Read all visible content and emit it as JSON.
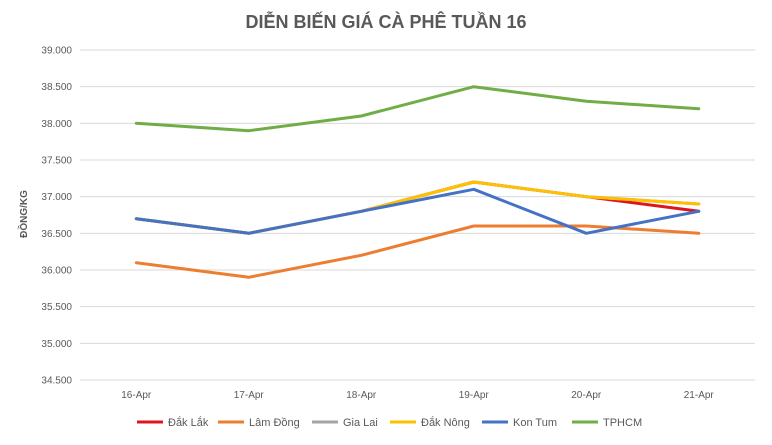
{
  "chart_data": {
    "type": "line",
    "title": "DIỄN BIẾN GIÁ CÀ PHÊ TUẦN 16",
    "xlabel": "",
    "ylabel": "ĐỒNG/KG",
    "categories": [
      "16-Apr",
      "17-Apr",
      "18-Apr",
      "19-Apr",
      "20-Apr",
      "21-Apr"
    ],
    "ylim": [
      34500,
      39000
    ],
    "yticks": [
      34500,
      35000,
      35500,
      36000,
      36500,
      37000,
      37500,
      38000,
      38500,
      39000
    ],
    "ytick_labels": [
      "34.500",
      "35.000",
      "35.500",
      "36.000",
      "36.500",
      "37.000",
      "37.500",
      "38.000",
      "38.500",
      "39.000"
    ],
    "grid": true,
    "legend_position": "bottom",
    "series": [
      {
        "name": "Đắk Lắk",
        "color": "#e0141e",
        "values": [
          36700,
          36500,
          36800,
          37200,
          37000,
          36800
        ]
      },
      {
        "name": "Lâm Đồng",
        "color": "#ed7d31",
        "values": [
          36100,
          35900,
          36200,
          36600,
          36600,
          36500
        ]
      },
      {
        "name": "Gia Lai",
        "color": "#a5a5a5",
        "values": [
          36700,
          36500,
          36800,
          37200,
          37000,
          36900
        ]
      },
      {
        "name": "Đắk Nông",
        "color": "#ffc000",
        "values": [
          36700,
          36500,
          36800,
          37200,
          37000,
          36900
        ]
      },
      {
        "name": "Kon Tum",
        "color": "#4472c4",
        "values": [
          36700,
          36500,
          36800,
          37100,
          36500,
          36800
        ]
      },
      {
        "name": "TPHCM",
        "color": "#70ad47",
        "values": [
          38000,
          37900,
          38100,
          38500,
          38300,
          38200
        ]
      }
    ]
  }
}
